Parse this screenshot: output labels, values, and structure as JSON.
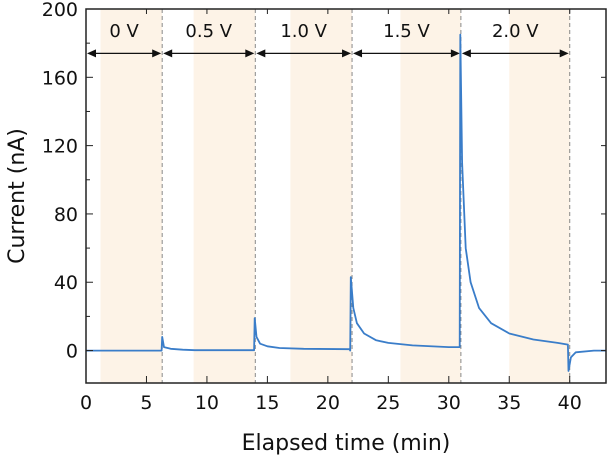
{
  "chart_data": {
    "type": "line",
    "xlabel": "Elapsed time (min)",
    "ylabel": "Current (nA)",
    "xlim": [
      0,
      43
    ],
    "ylim": [
      -19,
      200
    ],
    "xticks": [
      0,
      5,
      10,
      15,
      20,
      25,
      30,
      35,
      40
    ],
    "yticks": [
      0,
      40,
      80,
      120,
      160,
      200
    ],
    "grid": false,
    "line_color": "#3a7dc9",
    "shade_color": "#fdf3e7",
    "shaded_intervals": [
      [
        1.2,
        6.3
      ],
      [
        8.9,
        14.0
      ],
      [
        16.9,
        22.0
      ],
      [
        26.0,
        31.0
      ],
      [
        35.0,
        40.0
      ]
    ],
    "boundaries": [
      6.3,
      14.0,
      22.0,
      31.0,
      40.0
    ],
    "voltage_segments": [
      {
        "label": "0 V",
        "start": 0,
        "end": 6.3
      },
      {
        "label": "0.5 V",
        "start": 6.3,
        "end": 14.0
      },
      {
        "label": "1.0 V",
        "start": 14.0,
        "end": 22.0
      },
      {
        "label": "1.5 V",
        "start": 22.0,
        "end": 31.0
      },
      {
        "label": "2.0 V",
        "start": 31.0,
        "end": 40.0
      }
    ],
    "arrow_level": 174,
    "label_level": 187,
    "series": [
      {
        "name": "Current",
        "points": [
          [
            0,
            0
          ],
          [
            6.25,
            0
          ],
          [
            6.3,
            8
          ],
          [
            6.45,
            2
          ],
          [
            7,
            1
          ],
          [
            8,
            0.5
          ],
          [
            9,
            0.2
          ],
          [
            13.9,
            0.2
          ],
          [
            13.95,
            19
          ],
          [
            14.1,
            8
          ],
          [
            14.4,
            4
          ],
          [
            15,
            2.5
          ],
          [
            16,
            1.5
          ],
          [
            18,
            1
          ],
          [
            21.8,
            0.8
          ],
          [
            21.85,
            0
          ],
          [
            21.9,
            43
          ],
          [
            22.1,
            25
          ],
          [
            22.4,
            16
          ],
          [
            23,
            10
          ],
          [
            24,
            6
          ],
          [
            25,
            4.5
          ],
          [
            27,
            3
          ],
          [
            30,
            2
          ],
          [
            30.9,
            2
          ],
          [
            30.95,
            185
          ],
          [
            31.1,
            110
          ],
          [
            31.4,
            60
          ],
          [
            31.8,
            40
          ],
          [
            32.5,
            25
          ],
          [
            33.5,
            16
          ],
          [
            35,
            10
          ],
          [
            37,
            6.5
          ],
          [
            39,
            4.5
          ],
          [
            39.85,
            3.5
          ],
          [
            39.9,
            -12
          ],
          [
            40.1,
            -4
          ],
          [
            40.5,
            -1
          ],
          [
            42,
            0
          ],
          [
            43,
            0
          ]
        ]
      }
    ]
  }
}
